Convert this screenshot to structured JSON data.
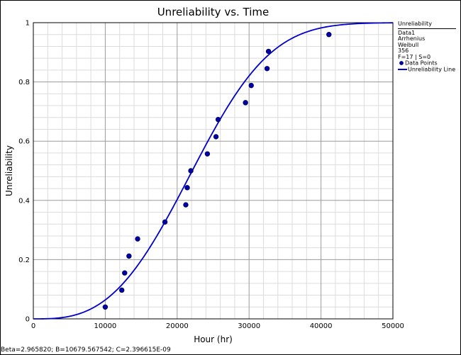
{
  "chart_data": {
    "type": "scatter",
    "title": "Unreliability vs. Time",
    "xlabel": "Hour (hr)",
    "ylabel": "Unreliability",
    "xlim": [
      0,
      50000
    ],
    "ylim": [
      0,
      1
    ],
    "x_ticks": [
      "0",
      "10000",
      "20000",
      "30000",
      "40000",
      "50000"
    ],
    "y_ticks": [
      "0",
      "0.2",
      "0.4",
      "0.6",
      "0.8",
      "1"
    ],
    "grid": true,
    "legend_position": "top-right",
    "series": [
      {
        "name": "Data Points",
        "kind": "scatter",
        "points": [
          [
            10000,
            0.04
          ],
          [
            12300,
            0.097
          ],
          [
            12700,
            0.155
          ],
          [
            13300,
            0.212
          ],
          [
            14500,
            0.27
          ],
          [
            18300,
            0.327
          ],
          [
            21200,
            0.385
          ],
          [
            21400,
            0.443
          ],
          [
            21900,
            0.5
          ],
          [
            24200,
            0.557
          ],
          [
            25400,
            0.615
          ],
          [
            25700,
            0.673
          ],
          [
            29500,
            0.73
          ],
          [
            30300,
            0.788
          ],
          [
            32500,
            0.845
          ],
          [
            32700,
            0.903
          ],
          [
            41100,
            0.96
          ]
        ]
      },
      {
        "name": "Unreliability Line",
        "kind": "line",
        "model": "Weibull",
        "beta": 2.96582,
        "eta": 25000
      }
    ],
    "legend": {
      "title": "Unreliability",
      "lines": [
        "Data1",
        "Arrhenius",
        "Weibull",
        "356",
        "F=17 | S=0"
      ],
      "items": [
        "Data Points",
        "Unreliability Line"
      ]
    },
    "footer": "Beta=2.965820; B=10679.567542; C=2.396615E-09"
  },
  "colors": {
    "series": "#0000cc",
    "point_fill": "#0000aa",
    "point_edge": "#000066",
    "major_grid": "#9a9a9a",
    "minor_grid": "#dcdcdc"
  }
}
